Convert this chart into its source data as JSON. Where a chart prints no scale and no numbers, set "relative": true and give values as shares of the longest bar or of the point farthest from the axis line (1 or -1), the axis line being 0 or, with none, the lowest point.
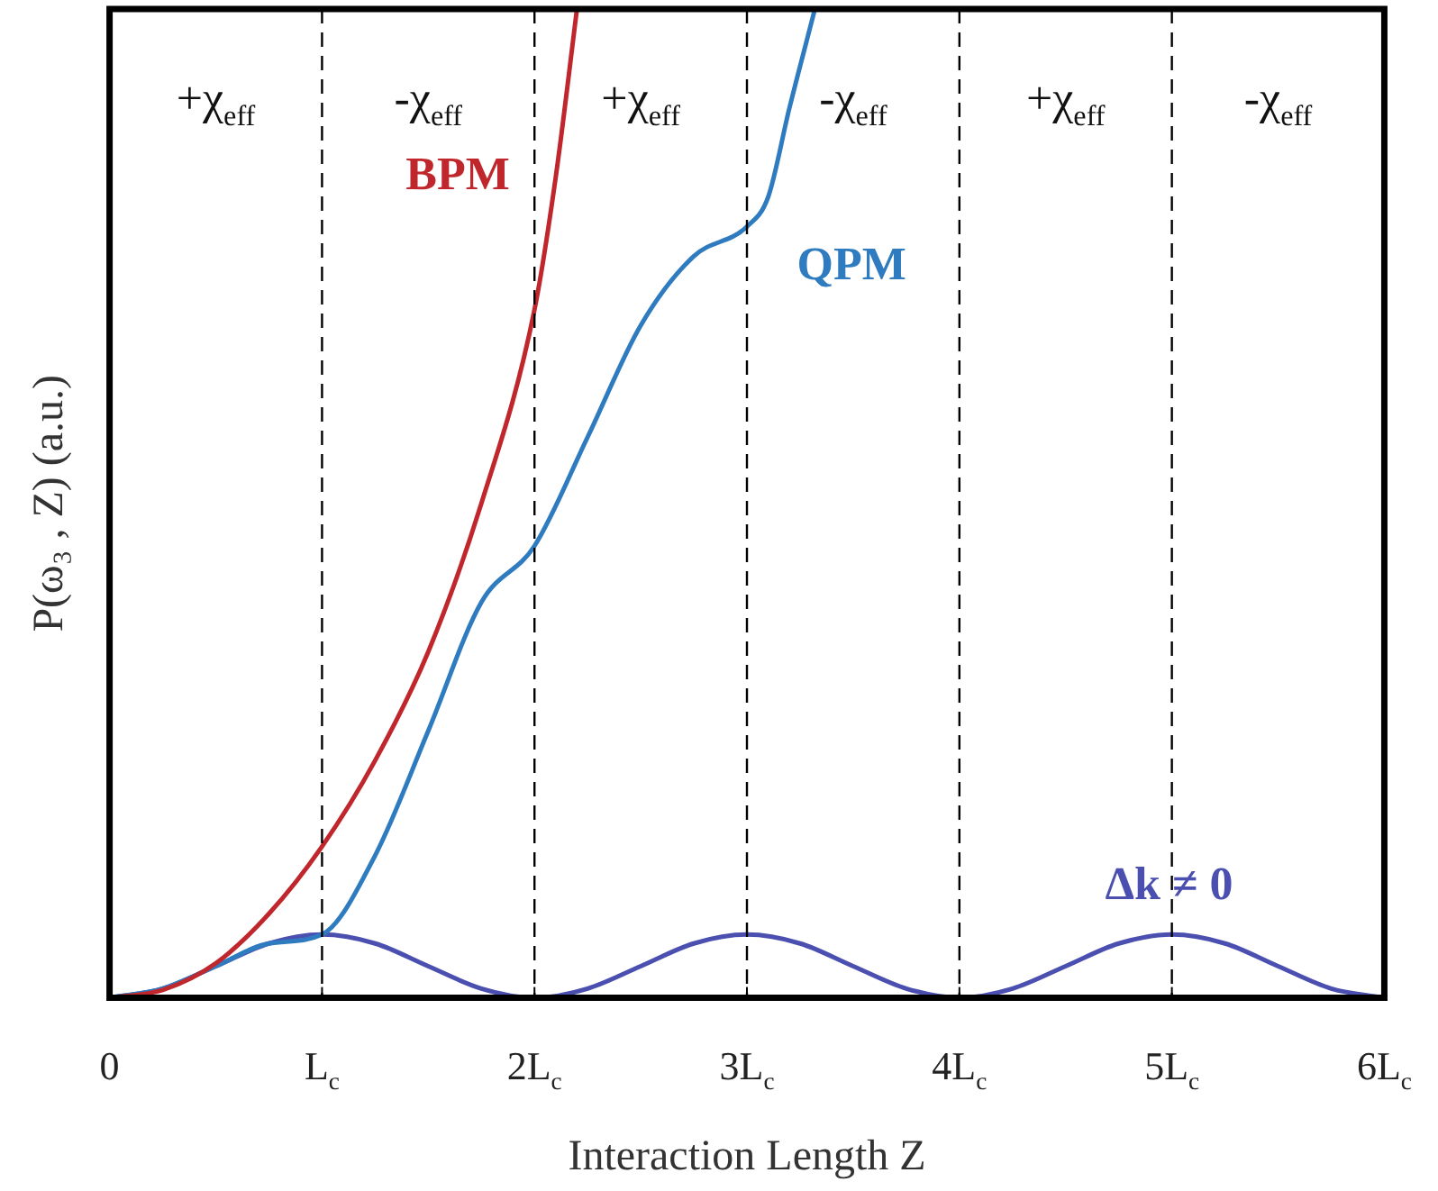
{
  "chart_data": {
    "type": "line",
    "relative": true,
    "xlabel": "Interaction Length Z",
    "ylabel": "P(ω₃ , Z) (a.u.)",
    "xlim": [
      0,
      6
    ],
    "xticks": [
      0,
      {
        "value": 1,
        "label": "L$_{c}$"
      },
      {
        "value": 2,
        "label": "2L$_{c}$"
      },
      {
        "value": 3,
        "label": "3L$_{c}$"
      },
      {
        "value": 4,
        "label": "4L$_{c}$"
      },
      {
        "value": 5,
        "label": "5L$_{c}$"
      },
      {
        "value": 6,
        "label": "6L$_{c}$"
      }
    ],
    "series": [
      {
        "name": "BPM",
        "color": "#c0272d",
        "x": [
          0,
          0.25,
          0.5,
          0.75,
          1,
          1.25,
          1.5,
          1.75,
          2,
          2.1,
          2.2
        ],
        "values": [
          0,
          0.008,
          0.035,
          0.085,
          0.153,
          0.24,
          0.35,
          0.5,
          0.696,
          0.83,
          1
        ]
      },
      {
        "name": "QPM",
        "color": "#2f7bbf",
        "x": [
          0,
          0.25,
          0.5,
          0.75,
          1,
          1.25,
          1.5,
          1.75,
          2,
          2.25,
          2.5,
          2.75,
          3,
          3.1,
          3.2,
          3.32
        ],
        "values": [
          0,
          0.0094,
          0.032,
          0.055,
          0.064,
          0.144,
          0.27,
          0.4,
          0.457,
          0.567,
          0.68,
          0.75,
          0.78,
          0.81,
          0.9,
          1
        ]
      },
      {
        "name": "Δk ≠ 0",
        "color": "#4a4fb0",
        "x": [
          0,
          0.25,
          0.5,
          0.75,
          1,
          1.25,
          1.5,
          1.75,
          2,
          2.25,
          2.5,
          2.75,
          3,
          3.25,
          3.5,
          3.75,
          4,
          4.25,
          4.5,
          4.75,
          5,
          5.25,
          5.5,
          5.75,
          6
        ],
        "values": [
          0,
          0.0094,
          0.032,
          0.055,
          0.064,
          0.055,
          0.032,
          0.0094,
          0,
          0.0094,
          0.032,
          0.055,
          0.064,
          0.055,
          0.032,
          0.0094,
          0,
          0.0094,
          0.032,
          0.055,
          0.064,
          0.055,
          0.032,
          0.0094,
          0
        ]
      }
    ],
    "ref_lines": [
      {
        "axis": "x",
        "value": 1
      },
      {
        "axis": "x",
        "value": 2
      },
      {
        "axis": "x",
        "value": 3
      },
      {
        "axis": "x",
        "value": 4
      },
      {
        "axis": "x",
        "value": 5
      }
    ],
    "annotations": [
      "+χ$_{eff}$",
      "-χ$_{eff}$",
      "+χ$_{eff}$",
      "-χ$_{eff}$",
      "+χ$_{eff}$",
      "-χ$_{eff}$"
    ],
    "line_style": "solid",
    "marker": "none",
    "grid": false,
    "legend": false
  }
}
